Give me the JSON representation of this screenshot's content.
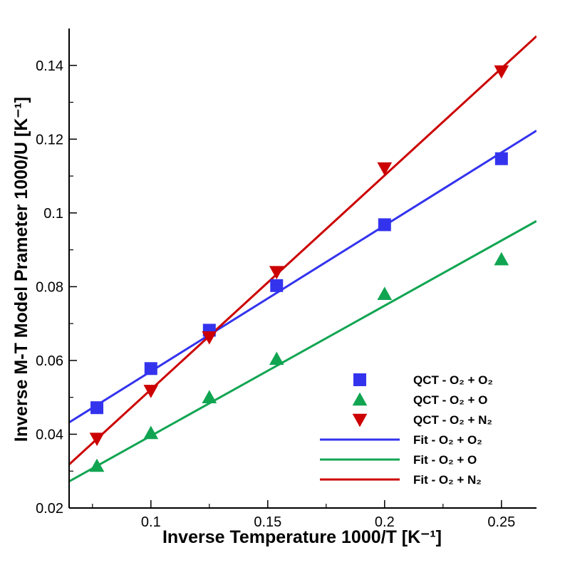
{
  "chart_data": {
    "type": "scatter",
    "xlabel": "Inverse Temperature 1000/T [K⁻¹]",
    "ylabel": "Inverse M-T Model Prameter 1000/U [K⁻¹]",
    "xlim": [
      0.065,
      0.265
    ],
    "ylim": [
      0.02,
      0.15
    ],
    "xticks": [
      0.1,
      0.15,
      0.2,
      0.25
    ],
    "xtick_labels": [
      "0.1",
      "0.15",
      "0.2",
      "0.25"
    ],
    "xminor": [
      0.075,
      0.125,
      0.175,
      0.225
    ],
    "yticks": [
      0.02,
      0.04,
      0.06,
      0.08,
      0.1,
      0.12,
      0.14
    ],
    "ytick_labels": [
      "0.02",
      "0.04",
      "0.06",
      "0.08",
      "0.1",
      "0.12",
      "0.14"
    ],
    "yminor": [
      0.03,
      0.05,
      0.07,
      0.09,
      0.11,
      0.13
    ],
    "grid": false,
    "legend_position": "bottom-right",
    "series": [
      {
        "name": "QCT - O₂ + O₂",
        "kind": "markers",
        "marker": "square",
        "color": "#3333ee",
        "x": [
          0.0769,
          0.1,
          0.125,
          0.1538,
          0.2,
          0.25
        ],
        "y": [
          0.0472,
          0.0578,
          0.0682,
          0.0803,
          0.0968,
          0.1147
        ]
      },
      {
        "name": "QCT - O₂ + O",
        "kind": "markers",
        "marker": "triangle-up",
        "color": "#11a552",
        "x": [
          0.0769,
          0.1,
          0.125,
          0.1538,
          0.2,
          0.25
        ],
        "y": [
          0.0314,
          0.0403,
          0.05,
          0.0604,
          0.078,
          0.0874
        ]
      },
      {
        "name": "QCT - O₂ + N₂",
        "kind": "markers",
        "marker": "triangle-down",
        "color": "#cc0000",
        "x": [
          0.0769,
          0.1,
          0.125,
          0.1538,
          0.2,
          0.25
        ],
        "y": [
          0.0388,
          0.0518,
          0.0663,
          0.084,
          0.1121,
          0.1384
        ]
      },
      {
        "name": "Fit - O₂ + O₂",
        "kind": "line",
        "color": "#3333ee",
        "x": [
          0.065,
          0.265
        ],
        "y": [
          0.0432,
          0.1223
        ]
      },
      {
        "name": "Fit - O₂ + O",
        "kind": "line",
        "color": "#11a552",
        "x": [
          0.065,
          0.265
        ],
        "y": [
          0.0272,
          0.0978
        ]
      },
      {
        "name": "Fit - O₂ + N₂",
        "kind": "line",
        "color": "#cc0000",
        "x": [
          0.065,
          0.265
        ],
        "y": [
          0.0318,
          0.1479
        ]
      }
    ]
  }
}
